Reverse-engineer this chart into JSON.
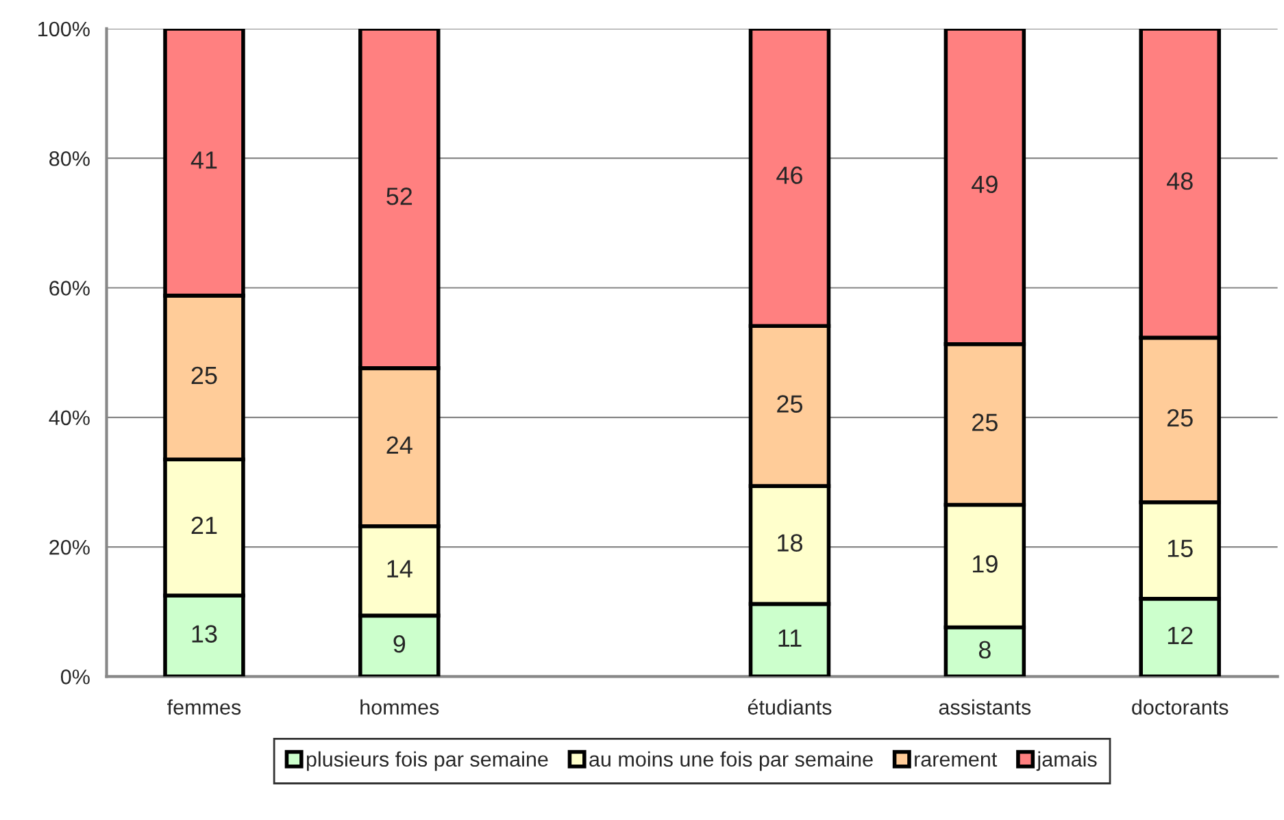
{
  "chart_data": {
    "type": "bar",
    "stacked": true,
    "categories": [
      "femmes",
      "hommes",
      null,
      "étudiants",
      "assistants",
      "doctorants"
    ],
    "series": [
      {
        "name": "plusieurs fois par semaine",
        "color": "#ccffcc",
        "values": [
          12.5,
          9.4,
          null,
          11.2,
          7.6,
          12.0
        ],
        "value_labels": [
          "13",
          "9",
          null,
          "11",
          "8",
          "12"
        ]
      },
      {
        "name": "au moins une fois par semaine",
        "color": "#ffffcc",
        "values": [
          21.0,
          13.8,
          null,
          18.2,
          18.9,
          14.9
        ],
        "value_labels": [
          "21",
          "14",
          null,
          "18",
          "19",
          "15"
        ]
      },
      {
        "name": "rarement",
        "color": "#ffcc99",
        "values": [
          25.3,
          24.4,
          null,
          24.7,
          24.8,
          25.4
        ],
        "value_labels": [
          "25",
          "24",
          null,
          "25",
          "25",
          "25"
        ]
      },
      {
        "name": "jamais",
        "color": "#ff8080",
        "values": [
          41.2,
          52.4,
          null,
          45.9,
          48.7,
          47.7
        ],
        "value_labels": [
          "41",
          "52",
          null,
          "46",
          "49",
          "48"
        ]
      }
    ],
    "ylim": [
      0,
      100
    ],
    "yticks": [
      {
        "value": 0,
        "label": "0%"
      },
      {
        "value": 20,
        "label": "20%"
      },
      {
        "value": 40,
        "label": "40%"
      },
      {
        "value": 60,
        "label": "60%"
      },
      {
        "value": 80,
        "label": "80%"
      },
      {
        "value": 100,
        "label": "100%"
      }
    ],
    "grid": "y",
    "legend": "bottom"
  }
}
